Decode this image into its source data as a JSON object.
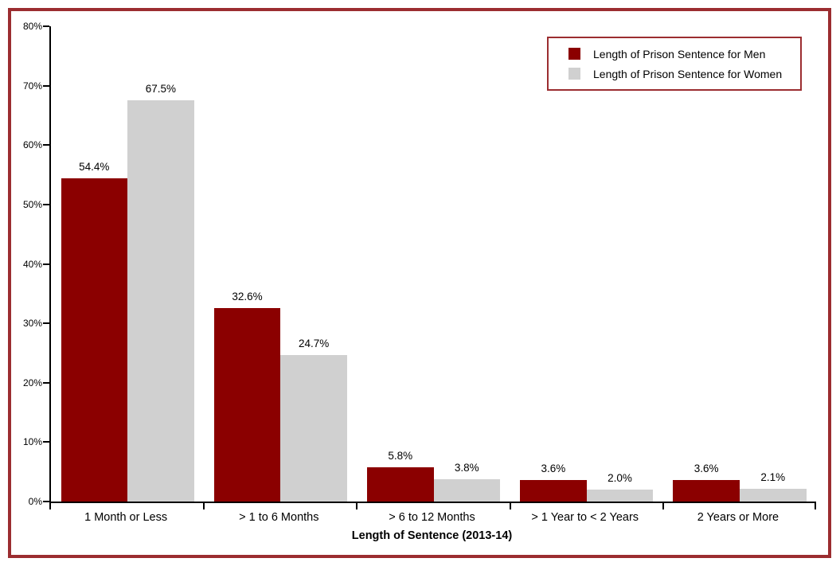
{
  "chart_data": {
    "type": "bar",
    "title": "",
    "categories": [
      "1 Month or Less",
      "> 1 to 6 Months",
      "> 6 to 12 Months",
      "> 1 Year to < 2 Years",
      "2 Years or More"
    ],
    "series": [
      {
        "name": "Length of Prison Sentence for Men",
        "color": "#8B0000",
        "values": [
          54.4,
          32.6,
          5.8,
          3.6,
          3.6
        ],
        "data_labels": [
          "54.4%",
          "32.6%",
          "5.8%",
          "3.6%",
          "3.6%"
        ]
      },
      {
        "name": "Length of Prison Sentence for Women",
        "color": "#D0D0D0",
        "values": [
          67.5,
          24.7,
          3.8,
          2.0,
          2.1
        ],
        "data_labels": [
          "67.5%",
          "24.7%",
          "3.8%",
          "2.0%",
          "2.1%"
        ]
      }
    ],
    "xlabel": "Length of Sentence (2013-14)",
    "ylabel": "",
    "ylim": [
      0,
      80
    ],
    "ytick_step": 10,
    "ytick_labels": [
      "0%",
      "10%",
      "20%",
      "30%",
      "40%",
      "50%",
      "60%",
      "70%",
      "80%"
    ],
    "grid": false,
    "legend_position": "top-right"
  },
  "colors": {
    "men_bar": "#8B0000",
    "women_bar": "#D0D0D0",
    "frame_border": "#9B2D30",
    "axis": "#000000",
    "background": "#FFFFFF",
    "text": "#000000"
  }
}
